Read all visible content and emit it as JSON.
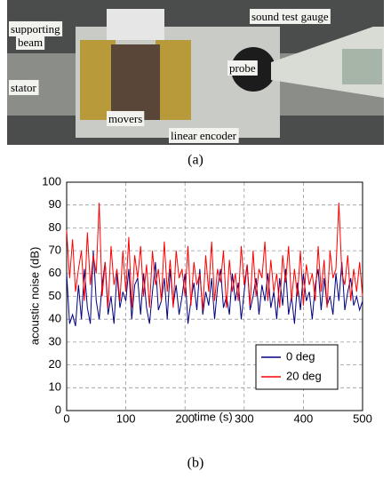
{
  "photo": {
    "labels": [
      {
        "lines": [
          "supporting",
          "beam"
        ]
      },
      {
        "lines": [
          "stator"
        ]
      },
      {
        "lines": [
          "movers"
        ]
      },
      {
        "lines": [
          "linear encoder"
        ]
      },
      {
        "lines": [
          "probe"
        ]
      },
      {
        "lines": [
          "sound test gauge"
        ]
      }
    ],
    "caption": "(a)"
  },
  "chart_data": {
    "type": "line",
    "caption": "(b)",
    "xlabel": "time (s)",
    "ylabel": "acoustic noise (dB)",
    "x": [
      0,
      5,
      10,
      15,
      20,
      25,
      30,
      35,
      40,
      45,
      50,
      55,
      60,
      65,
      70,
      75,
      80,
      85,
      90,
      95,
      100,
      105,
      110,
      115,
      120,
      125,
      130,
      135,
      140,
      145,
      150,
      155,
      160,
      165,
      170,
      175,
      180,
      185,
      190,
      195,
      200,
      205,
      210,
      215,
      220,
      225,
      230,
      235,
      240,
      245,
      250,
      255,
      260,
      265,
      270,
      275,
      280,
      285,
      290,
      295,
      300,
      305,
      310,
      315,
      320,
      325,
      330,
      335,
      340,
      345,
      350,
      355,
      360,
      365,
      370,
      375,
      380,
      385,
      390,
      395,
      400,
      405,
      410,
      415,
      420,
      425,
      430,
      435,
      440,
      445,
      450,
      455,
      460,
      465,
      470,
      475,
      480,
      485,
      490,
      495,
      500
    ],
    "series": [
      {
        "name": "0 deg",
        "color": "#000080",
        "values": [
          60,
          38,
          42,
          37,
          55,
          40,
          62,
          45,
          38,
          70,
          48,
          40,
          55,
          65,
          42,
          50,
          38,
          60,
          45,
          52,
          48,
          62,
          40,
          55,
          58,
          42,
          60,
          45,
          38,
          52,
          65,
          44,
          48,
          58,
          40,
          62,
          46,
          55,
          42,
          50,
          60,
          38,
          48,
          56,
          44,
          62,
          42,
          52,
          46,
          58,
          40,
          54,
          62,
          45,
          50,
          42,
          60,
          48,
          56,
          40,
          52,
          64,
          44,
          50,
          58,
          42,
          55,
          48,
          60,
          45,
          52,
          40,
          58,
          46,
          62,
          42,
          50,
          38,
          56,
          44,
          60,
          48,
          52,
          40,
          55,
          62,
          44,
          58,
          46,
          50,
          42,
          60,
          48,
          65,
          44,
          52,
          58,
          46,
          50,
          44,
          48
        ]
      },
      {
        "name": "20 deg",
        "color": "#ff0000",
        "values": [
          79,
          58,
          75,
          52,
          62,
          70,
          48,
          78,
          55,
          68,
          60,
          91,
          50,
          65,
          45,
          72,
          55,
          62,
          48,
          70,
          52,
          76,
          45,
          68,
          58,
          72,
          50,
          64,
          45,
          70,
          55,
          62,
          48,
          74,
          52,
          66,
          45,
          70,
          58,
          62,
          50,
          72,
          46,
          65,
          55,
          60,
          44,
          68,
          52,
          74,
          48,
          62,
          56,
          70,
          45,
          66,
          52,
          60,
          48,
          72,
          55,
          64,
          46,
          70,
          50,
          62,
          58,
          74,
          48,
          66,
          52,
          60,
          45,
          68,
          56,
          72,
          48,
          62,
          50,
          70,
          46,
          64,
          55,
          60,
          48,
          72,
          52,
          66,
          45,
          70,
          58,
          62,
          91,
          60,
          55,
          68,
          48,
          62,
          52,
          65,
          50
        ]
      }
    ],
    "xlim": [
      0,
      500
    ],
    "xticks": [
      0,
      100,
      200,
      300,
      400,
      500
    ],
    "ylim": [
      0,
      100
    ],
    "yticks": [
      0,
      10,
      20,
      30,
      40,
      50,
      60,
      70,
      80,
      90,
      100
    ],
    "grid": true,
    "legend": "lower right"
  }
}
